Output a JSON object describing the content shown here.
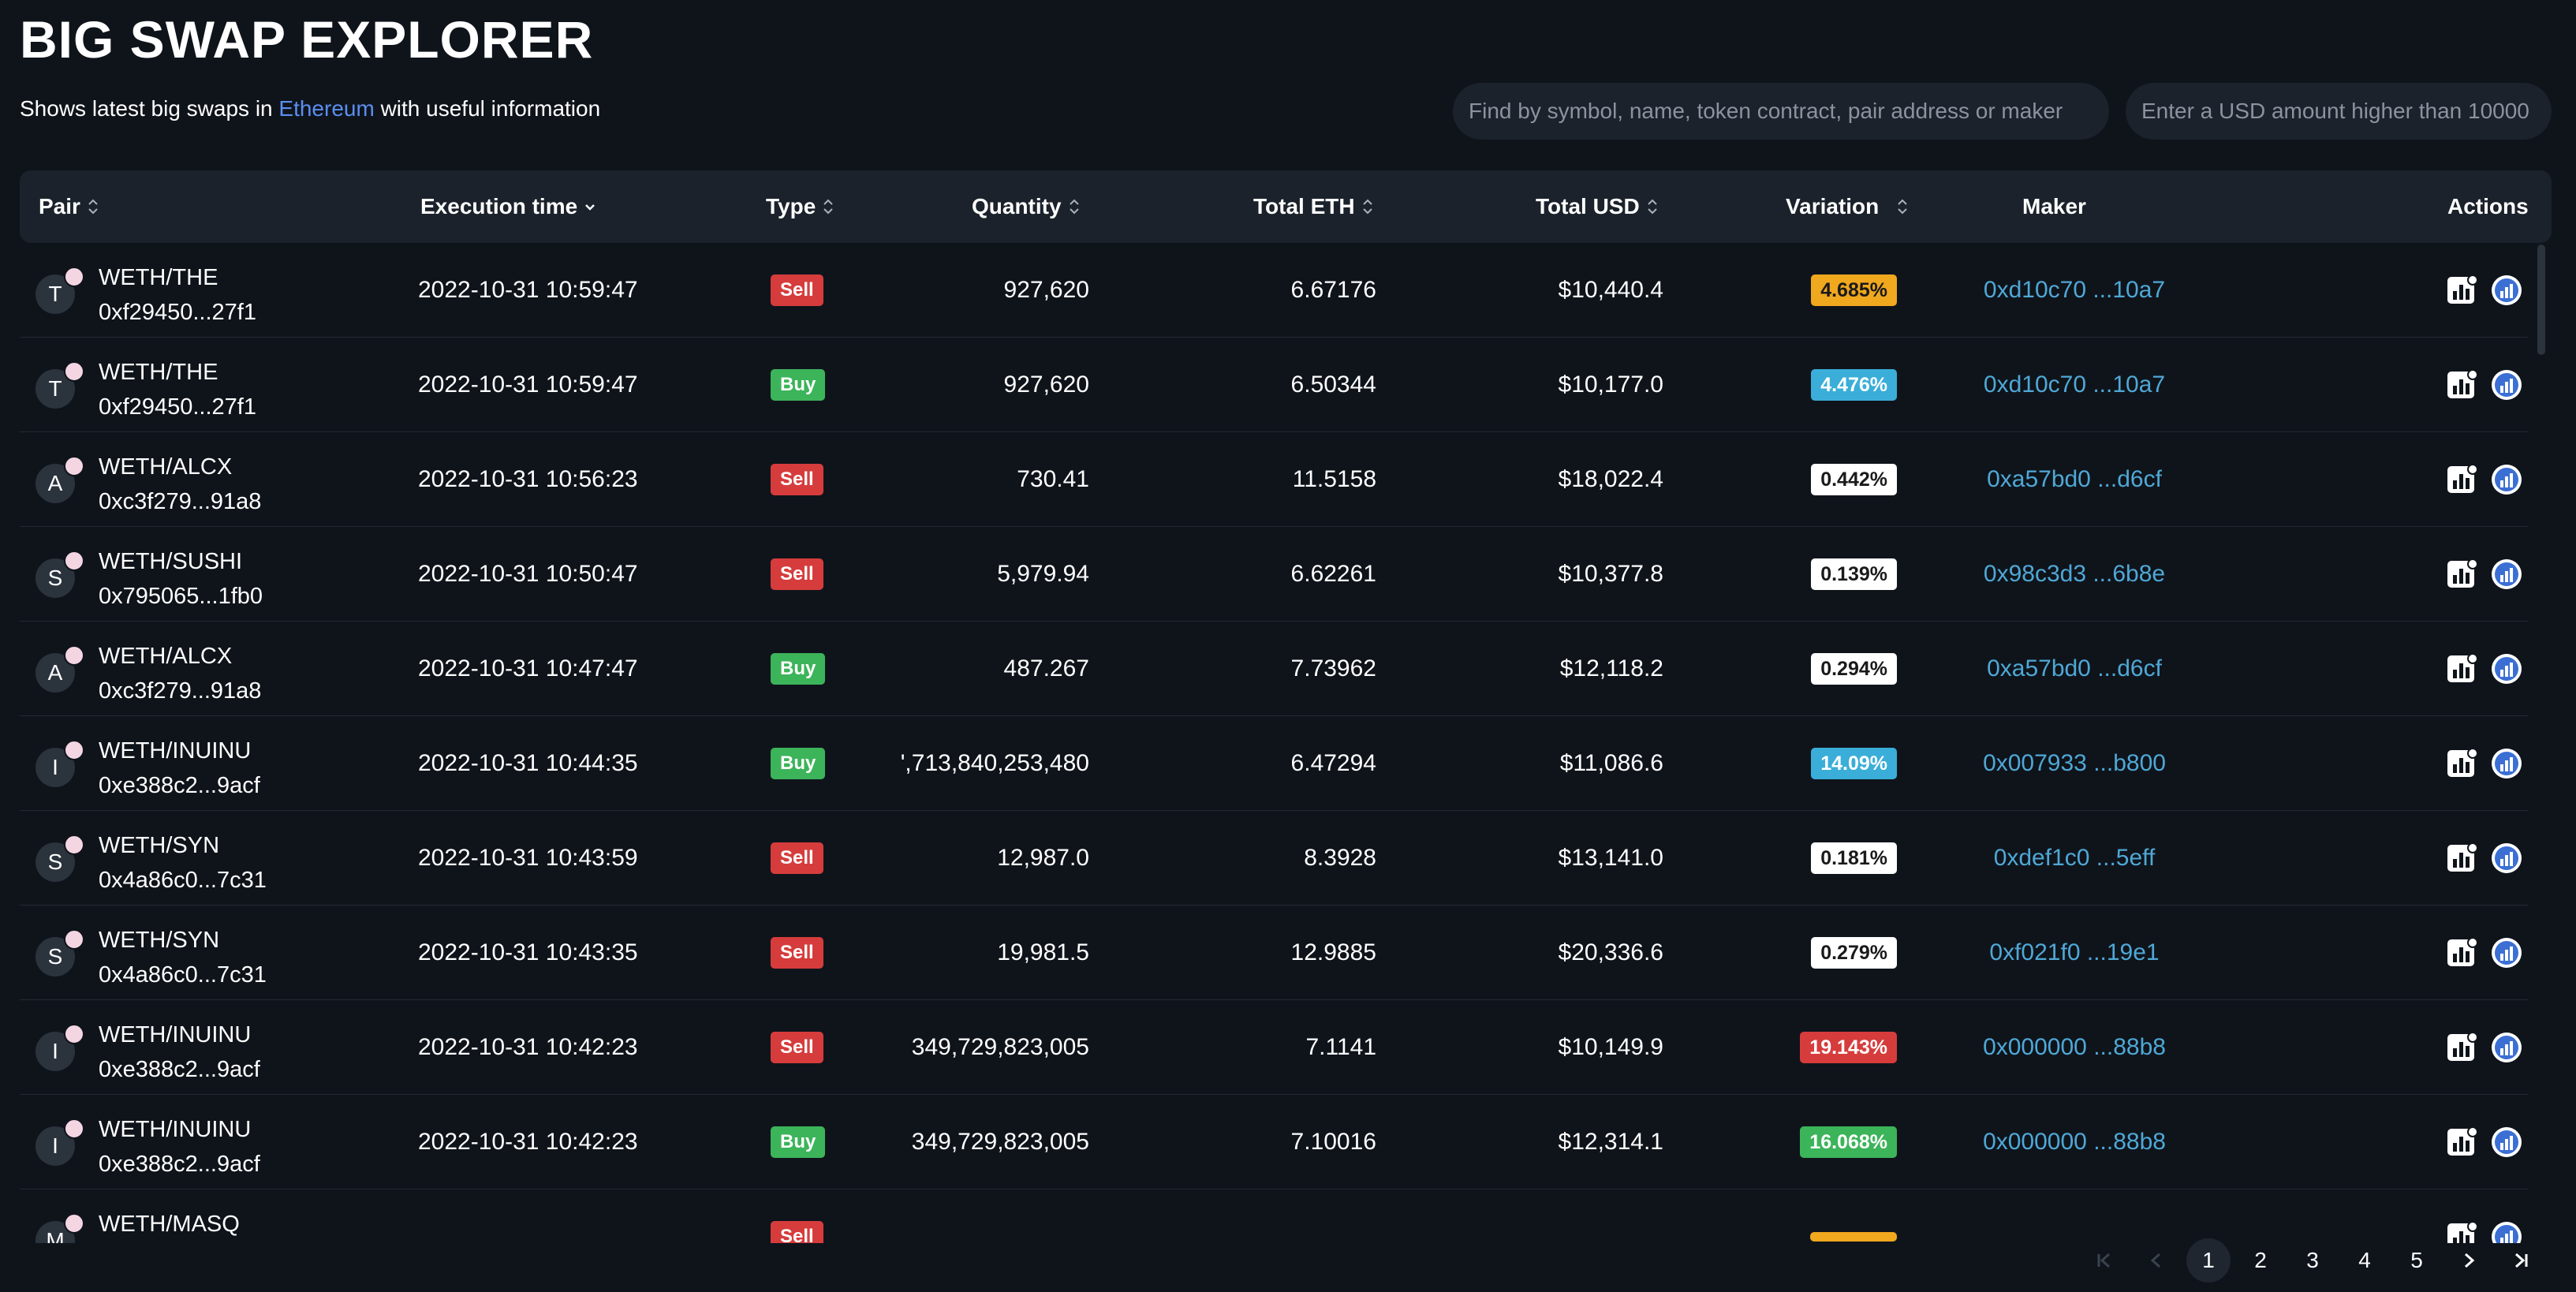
{
  "header": {
    "title": "BIG SWAP EXPLORER",
    "subtitle_prefix": "Shows latest big swaps in",
    "subtitle_chain": "Ethereum",
    "subtitle_suffix": "with useful information"
  },
  "search": {
    "main_placeholder": "Find by symbol, name, token contract, pair address or maker",
    "usd_placeholder": "Enter a USD amount higher than 10000"
  },
  "table": {
    "columns": {
      "pair": "Pair",
      "execution_time": "Execution time",
      "type": "Type",
      "quantity": "Quantity",
      "total_eth": "Total ETH",
      "total_usd": "Total USD",
      "variation": "Variation",
      "maker": "Maker",
      "actions": "Actions"
    },
    "rows": [
      {
        "initial": "T",
        "pair": "WETH/THE",
        "address": "0xf29450...27f1",
        "time": "2022-10-31 10:59:47",
        "type": "Sell",
        "quantity": "927,620",
        "total_eth": "6.67176",
        "total_usd": "$10,440.4",
        "variation": "4.685%",
        "variation_color": "#f0a81e",
        "variation_text_color": "#1a1a1a",
        "maker": "0xd10c70 ...10a7"
      },
      {
        "initial": "T",
        "pair": "WETH/THE",
        "address": "0xf29450...27f1",
        "time": "2022-10-31 10:59:47",
        "type": "Buy",
        "quantity": "927,620",
        "total_eth": "6.50344",
        "total_usd": "$10,177.0",
        "variation": "4.476%",
        "variation_color": "#3aaed8",
        "variation_text_color": "#ffffff",
        "maker": "0xd10c70 ...10a7"
      },
      {
        "initial": "A",
        "pair": "WETH/ALCX",
        "address": "0xc3f279...91a8",
        "time": "2022-10-31 10:56:23",
        "type": "Sell",
        "quantity": "730.41",
        "total_eth": "11.5158",
        "total_usd": "$18,022.4",
        "variation": "0.442%",
        "variation_color": "#ffffff",
        "variation_text_color": "#1a1a1a",
        "maker": "0xa57bd0 ...d6cf"
      },
      {
        "initial": "S",
        "pair": "WETH/SUSHI",
        "address": "0x795065...1fb0",
        "time": "2022-10-31 10:50:47",
        "type": "Sell",
        "quantity": "5,979.94",
        "total_eth": "6.62261",
        "total_usd": "$10,377.8",
        "variation": "0.139%",
        "variation_color": "#ffffff",
        "variation_text_color": "#1a1a1a",
        "maker": "0x98c3d3 ...6b8e"
      },
      {
        "initial": "A",
        "pair": "WETH/ALCX",
        "address": "0xc3f279...91a8",
        "time": "2022-10-31 10:47:47",
        "type": "Buy",
        "quantity": "487.267",
        "total_eth": "7.73962",
        "total_usd": "$12,118.2",
        "variation": "0.294%",
        "variation_color": "#ffffff",
        "variation_text_color": "#1a1a1a",
        "maker": "0xa57bd0 ...d6cf"
      },
      {
        "initial": "I",
        "pair": "WETH/INUINU",
        "address": "0xe388c2...9acf",
        "time": "2022-10-31 10:44:35",
        "type": "Buy",
        "quantity": "',713,840,253,480",
        "total_eth": "6.47294",
        "total_usd": "$11,086.6",
        "variation": "14.09%",
        "variation_color": "#3aaed8",
        "variation_text_color": "#ffffff",
        "maker": "0x007933 ...b800"
      },
      {
        "initial": "S",
        "pair": "WETH/SYN",
        "address": "0x4a86c0...7c31",
        "time": "2022-10-31 10:43:59",
        "type": "Sell",
        "quantity": "12,987.0",
        "total_eth": "8.3928",
        "total_usd": "$13,141.0",
        "variation": "0.181%",
        "variation_color": "#ffffff",
        "variation_text_color": "#1a1a1a",
        "maker": "0xdef1c0 ...5eff"
      },
      {
        "initial": "S",
        "pair": "WETH/SYN",
        "address": "0x4a86c0...7c31",
        "time": "2022-10-31 10:43:35",
        "type": "Sell",
        "quantity": "19,981.5",
        "total_eth": "12.9885",
        "total_usd": "$20,336.6",
        "variation": "0.279%",
        "variation_color": "#ffffff",
        "variation_text_color": "#1a1a1a",
        "maker": "0xf021f0 ...19e1"
      },
      {
        "initial": "I",
        "pair": "WETH/INUINU",
        "address": "0xe388c2...9acf",
        "time": "2022-10-31 10:42:23",
        "type": "Sell",
        "quantity": "349,729,823,005",
        "total_eth": "7.1141",
        "total_usd": "$10,149.9",
        "variation": "19.143%",
        "variation_color": "#d63c3c",
        "variation_text_color": "#ffffff",
        "maker": "0x000000 ...88b8"
      },
      {
        "initial": "I",
        "pair": "WETH/INUINU",
        "address": "0xe388c2...9acf",
        "time": "2022-10-31 10:42:23",
        "type": "Buy",
        "quantity": "349,729,823,005",
        "total_eth": "7.10016",
        "total_usd": "$12,314.1",
        "variation": "16.068%",
        "variation_color": "#3cb45a",
        "variation_text_color": "#ffffff",
        "maker": "0x000000 ...88b8"
      },
      {
        "initial": "M",
        "pair": "WETH/MASQ",
        "address": "",
        "time": "",
        "type": "Sell",
        "quantity": "",
        "total_eth": "",
        "total_usd": "",
        "variation": "",
        "variation_color": "#f0a81e",
        "variation_text_color": "#1a1a1a",
        "maker": ""
      }
    ]
  },
  "pagination": {
    "pages": [
      "1",
      "2",
      "3",
      "4",
      "5"
    ],
    "active_page": "1",
    "next_icon": "chevron-right-icon",
    "last_icon": "last-page-icon",
    "first_icon": "first-page-icon",
    "prev_icon": "chevron-left-icon"
  },
  "colors": {
    "background": "#0f141b",
    "header_bg": "#1b222b",
    "link": "#4fa8d6",
    "chain_link": "#5b8ef0",
    "sell": "#d63c3c",
    "buy": "#3cb45a"
  }
}
